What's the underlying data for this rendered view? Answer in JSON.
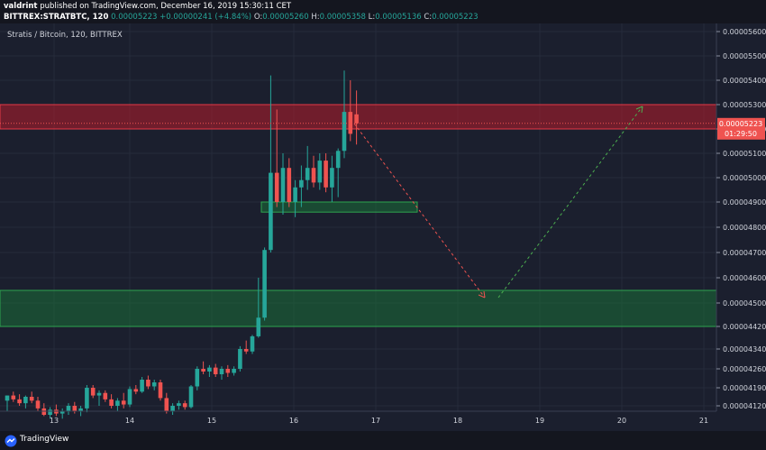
{
  "header": {
    "publisher": "valdrint",
    "published_text": "published on TradingView.com, December 16, 2019 15:30:11 CET",
    "symbol": "BITTREX:STRATBTC, 120",
    "last": "0.00005223",
    "change": "+0.00000241 (+4.84%)",
    "o_label": "O:",
    "o_value": "0.00005260",
    "h_label": "H:",
    "h_value": "0.00005358",
    "l_label": "L:",
    "l_value": "0.00005136",
    "c_label": "C:",
    "c_value": "0.00005223"
  },
  "pane_title": "Stratis / Bitcoin, 120, BITTREX",
  "footer": {
    "brand": "TradingView"
  },
  "chart_data": {
    "type": "candlestick",
    "y_ticks": [
      "0.00005600",
      "0.00005500",
      "0.00005400",
      "0.00005300",
      "0.00005200",
      "0.00005100",
      "0.00005000",
      "0.00004900",
      "0.00004800",
      "0.00004700",
      "0.00004600",
      "0.00004500",
      "0.00004420",
      "0.00004340",
      "0.00004260",
      "0.00004190",
      "0.00004120"
    ],
    "x_ticks": [
      "13",
      "14",
      "15",
      "16",
      "17",
      "18",
      "19",
      "20",
      "21"
    ],
    "price_label": "0.00005223",
    "countdown_label": "01:29:50",
    "colors": {
      "up": "#26a69a",
      "down": "#ef5350",
      "resistance": "#b71c2c",
      "support": "#1b7f3a",
      "arrow_down": "#ef5350",
      "arrow_up": "#4caf50"
    },
    "zones": [
      {
        "name": "resistance",
        "from": "0.00005200",
        "to": "0.00005300"
      },
      {
        "name": "support-small",
        "from": "0.00004860",
        "to": "0.00004900"
      },
      {
        "name": "support-large",
        "from": "0.00004420",
        "to": "0.00004550"
      }
    ],
    "candles": [
      {
        "o": 4140,
        "h": 4160,
        "l": 4100,
        "c": 4160
      },
      {
        "o": 4160,
        "h": 4175,
        "l": 4135,
        "c": 4145
      },
      {
        "o": 4145,
        "h": 4165,
        "l": 4120,
        "c": 4130
      },
      {
        "o": 4130,
        "h": 4160,
        "l": 4110,
        "c": 4155
      },
      {
        "o": 4155,
        "h": 4175,
        "l": 4130,
        "c": 4140
      },
      {
        "o": 4140,
        "h": 4155,
        "l": 4100,
        "c": 4110
      },
      {
        "o": 4110,
        "h": 4130,
        "l": 4080,
        "c": 4085
      },
      {
        "o": 4085,
        "h": 4115,
        "l": 4070,
        "c": 4105
      },
      {
        "o": 4105,
        "h": 4125,
        "l": 4080,
        "c": 4090
      },
      {
        "o": 4090,
        "h": 4110,
        "l": 4070,
        "c": 4100
      },
      {
        "o": 4100,
        "h": 4130,
        "l": 4085,
        "c": 4120
      },
      {
        "o": 4120,
        "h": 4135,
        "l": 4090,
        "c": 4100
      },
      {
        "o": 4100,
        "h": 4120,
        "l": 4080,
        "c": 4110
      },
      {
        "o": 4110,
        "h": 4200,
        "l": 4095,
        "c": 4190
      },
      {
        "o": 4190,
        "h": 4200,
        "l": 4150,
        "c": 4160
      },
      {
        "o": 4160,
        "h": 4180,
        "l": 4120,
        "c": 4170
      },
      {
        "o": 4170,
        "h": 4180,
        "l": 4135,
        "c": 4145
      },
      {
        "o": 4145,
        "h": 4165,
        "l": 4110,
        "c": 4120
      },
      {
        "o": 4120,
        "h": 4150,
        "l": 4100,
        "c": 4140
      },
      {
        "o": 4140,
        "h": 4170,
        "l": 4110,
        "c": 4125
      },
      {
        "o": 4125,
        "h": 4195,
        "l": 4115,
        "c": 4185
      },
      {
        "o": 4185,
        "h": 4200,
        "l": 4165,
        "c": 4175
      },
      {
        "o": 4175,
        "h": 4230,
        "l": 4170,
        "c": 4220
      },
      {
        "o": 4220,
        "h": 4235,
        "l": 4185,
        "c": 4195
      },
      {
        "o": 4195,
        "h": 4220,
        "l": 4180,
        "c": 4210
      },
      {
        "o": 4210,
        "h": 4220,
        "l": 4140,
        "c": 4150
      },
      {
        "o": 4150,
        "h": 4170,
        "l": 4090,
        "c": 4100
      },
      {
        "o": 4100,
        "h": 4130,
        "l": 4085,
        "c": 4120
      },
      {
        "o": 4120,
        "h": 4140,
        "l": 4105,
        "c": 4130
      },
      {
        "o": 4130,
        "h": 4140,
        "l": 4105,
        "c": 4115
      },
      {
        "o": 4115,
        "h": 4200,
        "l": 4110,
        "c": 4195
      },
      {
        "o": 4195,
        "h": 4270,
        "l": 4180,
        "c": 4260
      },
      {
        "o": 4260,
        "h": 4290,
        "l": 4240,
        "c": 4250
      },
      {
        "o": 4250,
        "h": 4275,
        "l": 4230,
        "c": 4265
      },
      {
        "o": 4265,
        "h": 4280,
        "l": 4230,
        "c": 4240
      },
      {
        "o": 4240,
        "h": 4270,
        "l": 4220,
        "c": 4260
      },
      {
        "o": 4260,
        "h": 4275,
        "l": 4230,
        "c": 4245
      },
      {
        "o": 4245,
        "h": 4270,
        "l": 4235,
        "c": 4260
      },
      {
        "o": 4260,
        "h": 4350,
        "l": 4250,
        "c": 4340
      },
      {
        "o": 4340,
        "h": 4370,
        "l": 4320,
        "c": 4330
      },
      {
        "o": 4330,
        "h": 4390,
        "l": 4320,
        "c": 4385
      },
      {
        "o": 4385,
        "h": 4600,
        "l": 4380,
        "c": 4450
      },
      {
        "o": 4450,
        "h": 4720,
        "l": 4440,
        "c": 4710
      },
      {
        "o": 4710,
        "h": 5420,
        "l": 4700,
        "c": 5020
      },
      {
        "o": 5020,
        "h": 5280,
        "l": 4880,
        "c": 4900
      },
      {
        "o": 4900,
        "h": 5100,
        "l": 4850,
        "c": 5040
      },
      {
        "o": 5040,
        "h": 5080,
        "l": 4880,
        "c": 4900
      },
      {
        "o": 4900,
        "h": 4990,
        "l": 4840,
        "c": 4960
      },
      {
        "o": 4960,
        "h": 5050,
        "l": 4880,
        "c": 4990
      },
      {
        "o": 4990,
        "h": 5130,
        "l": 4950,
        "c": 5040
      },
      {
        "o": 5040,
        "h": 5090,
        "l": 4960,
        "c": 4980
      },
      {
        "o": 4980,
        "h": 5100,
        "l": 4950,
        "c": 5070
      },
      {
        "o": 5070,
        "h": 5100,
        "l": 4940,
        "c": 4960
      },
      {
        "o": 4960,
        "h": 5090,
        "l": 4900,
        "c": 5040
      },
      {
        "o": 5040,
        "h": 5120,
        "l": 4920,
        "c": 5110
      },
      {
        "o": 5110,
        "h": 5440,
        "l": 5080,
        "c": 5270
      },
      {
        "o": 5270,
        "h": 5400,
        "l": 5150,
        "c": 5180
      },
      {
        "o": 5260,
        "h": 5358,
        "l": 5136,
        "c": 5223
      }
    ]
  }
}
